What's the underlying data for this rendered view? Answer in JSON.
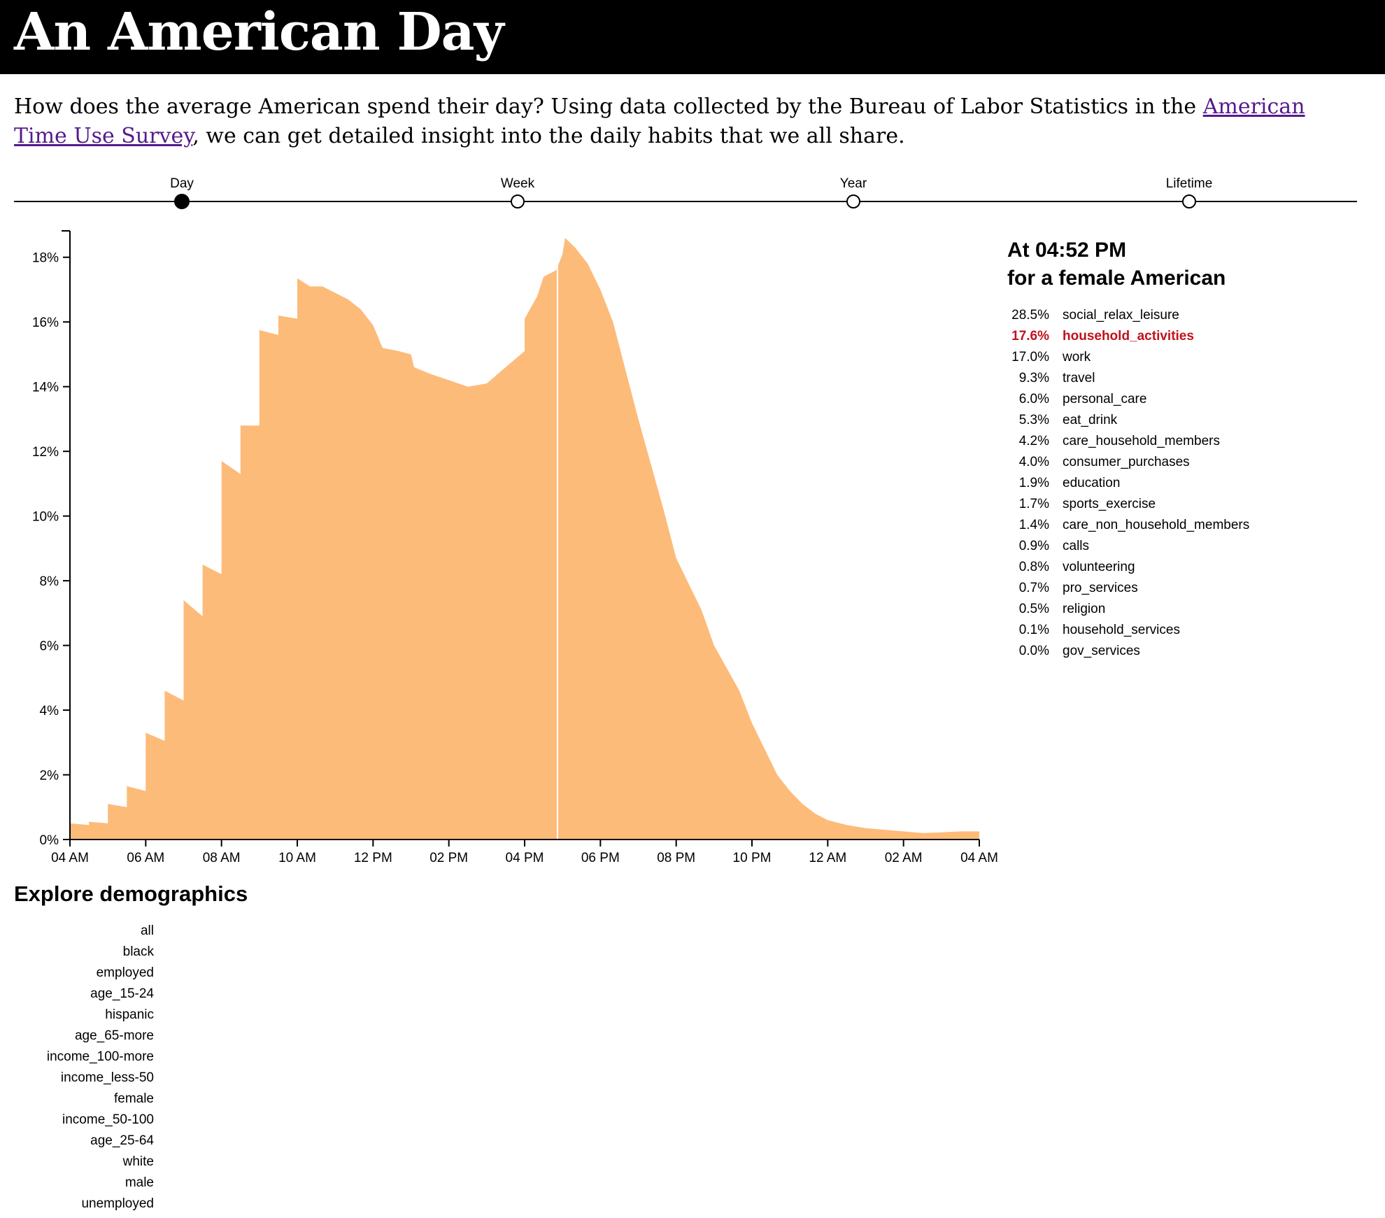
{
  "header": {
    "title": "An American Day"
  },
  "intro": {
    "before": "How does the average American spend their day? Using data collected by the Bureau of Labor Statistics in the ",
    "link": "American Time Use Survey",
    "after": ", we can get detailed insight into the daily habits that we all share."
  },
  "timeline": {
    "selected": "Day",
    "options": [
      "Day",
      "Week",
      "Year",
      "Lifetime"
    ]
  },
  "info": {
    "time_line": "At 04:52 PM",
    "group_line": "for a female American",
    "highlight_color": "#c0121d",
    "activities": [
      {
        "pct": "28.5%",
        "name": "social_relax_leisure"
      },
      {
        "pct": "17.6%",
        "name": "household_activities",
        "highlight": true
      },
      {
        "pct": "17.0%",
        "name": "work"
      },
      {
        "pct": "9.3%",
        "name": "travel"
      },
      {
        "pct": "6.0%",
        "name": "personal_care"
      },
      {
        "pct": "5.3%",
        "name": "eat_drink"
      },
      {
        "pct": "4.2%",
        "name": "care_household_members"
      },
      {
        "pct": "4.0%",
        "name": "consumer_purchases"
      },
      {
        "pct": "1.9%",
        "name": "education"
      },
      {
        "pct": "1.7%",
        "name": "sports_exercise"
      },
      {
        "pct": "1.4%",
        "name": "care_non_household_members"
      },
      {
        "pct": "0.9%",
        "name": "calls"
      },
      {
        "pct": "0.8%",
        "name": "volunteering"
      },
      {
        "pct": "0.7%",
        "name": "pro_services"
      },
      {
        "pct": "0.5%",
        "name": "religion"
      },
      {
        "pct": "0.1%",
        "name": "household_services"
      },
      {
        "pct": "0.0%",
        "name": "gov_services"
      }
    ]
  },
  "demographics": {
    "title": "Explore demographics",
    "items": [
      "all",
      "black",
      "employed",
      "age_15-24",
      "hispanic",
      "age_65-more",
      "income_100-more",
      "income_less-50",
      "female",
      "income_50-100",
      "age_25-64",
      "white",
      "male",
      "unemployed"
    ]
  },
  "chart_data": {
    "type": "area",
    "color": "#fdbb79",
    "cursor_color": "#ffffff",
    "ylim": [
      0,
      18.6
    ],
    "yticks": [
      0,
      2,
      4,
      6,
      8,
      10,
      12,
      14,
      16,
      18
    ],
    "ytick_labels": [
      "0%",
      "2%",
      "4%",
      "6%",
      "8%",
      "10%",
      "12%",
      "14%",
      "16%",
      "18%"
    ],
    "xlim": [
      0,
      1440
    ],
    "xticks": [
      0,
      120,
      240,
      360,
      480,
      600,
      720,
      840,
      960,
      1080,
      1200,
      1320,
      1440
    ],
    "xtick_labels": [
      "04 AM",
      "06 AM",
      "08 AM",
      "10 AM",
      "12 PM",
      "02 PM",
      "04 PM",
      "06 PM",
      "08 PM",
      "10 PM",
      "12 AM",
      "02 AM",
      "04 AM"
    ],
    "x_unit": "minutes after 04 AM",
    "cursor_x": 772,
    "points": [
      [
        0,
        0.5
      ],
      [
        30,
        0.45
      ],
      [
        30,
        0.55
      ],
      [
        60,
        0.5
      ],
      [
        60,
        1.1
      ],
      [
        90,
        1.0
      ],
      [
        90,
        1.65
      ],
      [
        120,
        1.5
      ],
      [
        120,
        3.3
      ],
      [
        150,
        3.05
      ],
      [
        150,
        4.6
      ],
      [
        180,
        4.3
      ],
      [
        180,
        7.4
      ],
      [
        210,
        6.9
      ],
      [
        210,
        8.5
      ],
      [
        240,
        8.2
      ],
      [
        240,
        11.7
      ],
      [
        270,
        11.3
      ],
      [
        270,
        12.8
      ],
      [
        300,
        12.8
      ],
      [
        300,
        15.75
      ],
      [
        330,
        15.6
      ],
      [
        330,
        16.2
      ],
      [
        360,
        16.1
      ],
      [
        360,
        17.35
      ],
      [
        380,
        17.1
      ],
      [
        400,
        17.1
      ],
      [
        420,
        16.9
      ],
      [
        440,
        16.7
      ],
      [
        460,
        16.4
      ],
      [
        480,
        15.9
      ],
      [
        495,
        15.2
      ],
      [
        520,
        15.1
      ],
      [
        540,
        15.0
      ],
      [
        545,
        14.6
      ],
      [
        570,
        14.4
      ],
      [
        600,
        14.2
      ],
      [
        630,
        14.0
      ],
      [
        660,
        14.1
      ],
      [
        690,
        14.6
      ],
      [
        720,
        15.1
      ],
      [
        720,
        16.1
      ],
      [
        740,
        16.8
      ],
      [
        750,
        17.4
      ],
      [
        770,
        17.6
      ],
      [
        780,
        18.1
      ],
      [
        784,
        18.6
      ],
      [
        800,
        18.3
      ],
      [
        820,
        17.8
      ],
      [
        840,
        17.0
      ],
      [
        860,
        16.0
      ],
      [
        880,
        14.5
      ],
      [
        900,
        13.0
      ],
      [
        920,
        11.6
      ],
      [
        940,
        10.2
      ],
      [
        960,
        8.7
      ],
      [
        980,
        7.9
      ],
      [
        1000,
        7.1
      ],
      [
        1020,
        6.0
      ],
      [
        1040,
        5.3
      ],
      [
        1060,
        4.6
      ],
      [
        1080,
        3.6
      ],
      [
        1100,
        2.8
      ],
      [
        1120,
        2.0
      ],
      [
        1140,
        1.5
      ],
      [
        1160,
        1.1
      ],
      [
        1180,
        0.8
      ],
      [
        1200,
        0.6
      ],
      [
        1230,
        0.45
      ],
      [
        1260,
        0.35
      ],
      [
        1290,
        0.3
      ],
      [
        1320,
        0.25
      ],
      [
        1350,
        0.2
      ],
      [
        1380,
        0.22
      ],
      [
        1410,
        0.25
      ],
      [
        1440,
        0.25
      ]
    ]
  }
}
